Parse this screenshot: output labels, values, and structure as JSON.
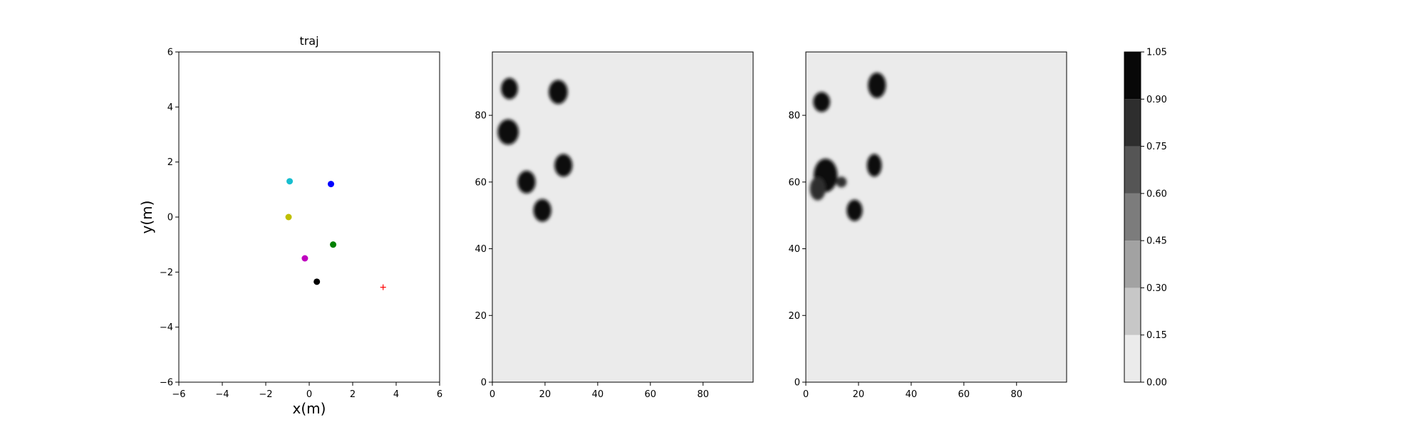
{
  "chart_data": [
    {
      "type": "scatter",
      "title": "traj",
      "xlabel": "x(m)",
      "ylabel": "y(m)",
      "xlim": [
        -6,
        6
      ],
      "ylim": [
        -6,
        6
      ],
      "xticks": [
        -6,
        -4,
        -2,
        0,
        2,
        4,
        6
      ],
      "yticks": [
        -6,
        -4,
        -2,
        0,
        2,
        4,
        6
      ],
      "points": [
        {
          "x": -0.9,
          "y": 1.3,
          "color": "#17becf",
          "marker": "circle"
        },
        {
          "x": 1.0,
          "y": 1.2,
          "color": "#0000ff",
          "marker": "circle"
        },
        {
          "x": -0.95,
          "y": 0.0,
          "color": "#bfbf00",
          "marker": "circle"
        },
        {
          "x": 1.1,
          "y": -1.0,
          "color": "#008000",
          "marker": "circle"
        },
        {
          "x": -0.2,
          "y": -1.5,
          "color": "#bf00bf",
          "marker": "circle"
        },
        {
          "x": 0.35,
          "y": -2.35,
          "color": "#000000",
          "marker": "circle"
        },
        {
          "x": 3.4,
          "y": -2.55,
          "color": "#ff0000",
          "marker": "plus"
        }
      ]
    },
    {
      "type": "heatmap",
      "xlim": [
        0,
        99
      ],
      "ylim": [
        0,
        99
      ],
      "xticks": [
        0,
        20,
        40,
        60,
        80
      ],
      "yticks": [
        0,
        20,
        40,
        60,
        80
      ],
      "background_value": 0.05,
      "blobs": [
        {
          "x": 6.5,
          "y": 88,
          "rx": 3.2,
          "ry": 3.2,
          "value": 1.0
        },
        {
          "x": 25,
          "y": 87,
          "rx": 3.6,
          "ry": 3.6,
          "value": 1.0
        },
        {
          "x": 6,
          "y": 75,
          "rx": 4.0,
          "ry": 3.8,
          "value": 1.0
        },
        {
          "x": 27,
          "y": 65,
          "rx": 3.4,
          "ry": 3.4,
          "value": 1.0
        },
        {
          "x": 13,
          "y": 60,
          "rx": 3.4,
          "ry": 3.4,
          "value": 1.0
        },
        {
          "x": 19,
          "y": 51.5,
          "rx": 3.4,
          "ry": 3.4,
          "value": 1.0
        }
      ]
    },
    {
      "type": "heatmap",
      "xlim": [
        0,
        99
      ],
      "ylim": [
        0,
        99
      ],
      "xticks": [
        0,
        20,
        40,
        60,
        80
      ],
      "yticks": [
        0,
        20,
        40,
        60,
        80
      ],
      "background_value": 0.05,
      "blobs": [
        {
          "x": 6,
          "y": 84,
          "rx": 3.2,
          "ry": 3.0,
          "value": 1.0
        },
        {
          "x": 27,
          "y": 89,
          "rx": 3.4,
          "ry": 3.8,
          "value": 1.0
        },
        {
          "x": 7.5,
          "y": 62,
          "rx": 4.5,
          "ry": 5.0,
          "value": 1.0
        },
        {
          "x": 4.5,
          "y": 58,
          "rx": 3.0,
          "ry": 3.5,
          "value": 0.85
        },
        {
          "x": 13.5,
          "y": 60,
          "rx": 2.0,
          "ry": 1.6,
          "value": 0.75
        },
        {
          "x": 26,
          "y": 65,
          "rx": 2.8,
          "ry": 3.4,
          "value": 1.0
        },
        {
          "x": 18.5,
          "y": 51.5,
          "rx": 3.0,
          "ry": 3.2,
          "value": 1.0
        }
      ]
    },
    {
      "type": "colorbar",
      "levels": [
        0.0,
        0.15,
        0.3,
        0.45,
        0.6,
        0.75,
        0.9,
        1.05
      ],
      "tick_labels": [
        "0.00",
        "0.15",
        "0.30",
        "0.45",
        "0.60",
        "0.75",
        "0.90",
        "1.05"
      ],
      "colors": [
        "#ebebeb",
        "#c7c7c7",
        "#a2a2a2",
        "#7c7c7c",
        "#555555",
        "#2e2e2e",
        "#080808"
      ]
    }
  ]
}
